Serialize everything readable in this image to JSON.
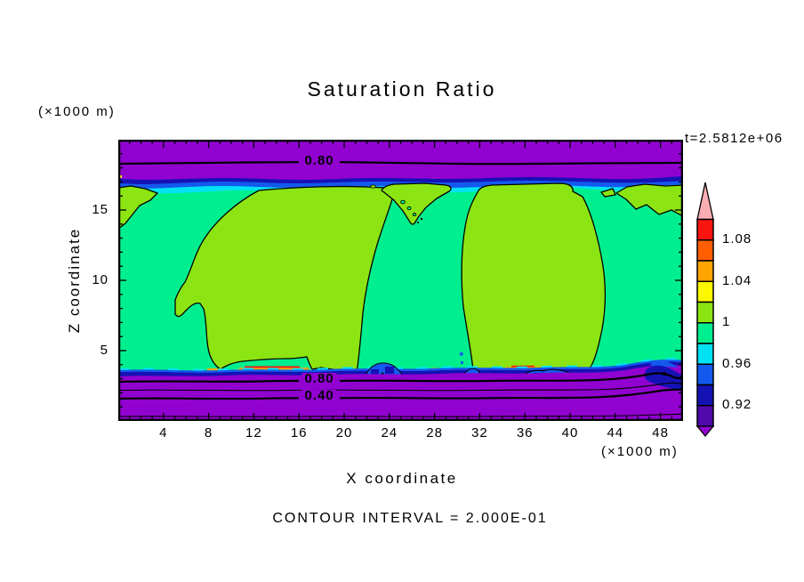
{
  "title": "Saturation Ratio",
  "time_label": "t=2.5812e+06",
  "y_unit_label": "(×1000 m)",
  "x_unit_label": "(×1000 m)",
  "footer_note": "CONTOUR INTERVAL = 2.000E-01",
  "palette": {
    "purple": "#9102D1",
    "indigo": "#5109AC",
    "navy": "#1512B4",
    "blue": "#1459EE",
    "cyan": "#00E2F4",
    "spring": "#00EF8E",
    "chartreuse": "#8CE512",
    "yellow": "#FDF800",
    "orange": "#FFA400",
    "orangeRed": "#FF5E00",
    "red": "#FA1410",
    "pink": "#FCAEB4"
  },
  "chart_data": {
    "type": "heatmap",
    "subtype": "filled-contour-plot",
    "title": "Saturation Ratio",
    "time_annotation": "t=2.5812e+06",
    "xlabel": "X coordinate",
    "ylabel": "Z coordinate",
    "x_unit": "(×1000 m)",
    "y_unit": "(×1000 m)",
    "xlim": [
      0,
      50
    ],
    "ylim": [
      0,
      20
    ],
    "x_ticks_labeled": [
      4,
      8,
      12,
      16,
      20,
      24,
      28,
      32,
      36,
      40,
      44,
      48
    ],
    "x_minor_tick_step": 1,
    "y_ticks_labeled": [
      5,
      10,
      15
    ],
    "y_minor_tick_step": 1,
    "grid": false,
    "contour_interval": 0.2,
    "contour_interval_text": "CONTOUR INTERVAL = 2.000E-01",
    "line_contour_labels": [
      {
        "text": "0.80",
        "x": 17.8,
        "y": 18.45
      },
      {
        "text": "0.80",
        "x": 17.8,
        "y": 2.95
      },
      {
        "text": "0.40",
        "x": 17.8,
        "y": 1.78
      }
    ],
    "colorbar": {
      "position": "right",
      "labels": [
        {
          "text": "1.08",
          "boundary_after_cell": 1
        },
        {
          "text": "1.04",
          "boundary_after_cell": 3
        },
        {
          "text": "1",
          "boundary_after_cell": 5
        },
        {
          "text": "0.96",
          "boundary_after_cell": 7
        },
        {
          "text": "0.92",
          "boundary_after_cell": 9
        }
      ],
      "cells_top_to_bottom": [
        {
          "range": "1.08 to 1.10",
          "color_name": "red"
        },
        {
          "range": "1.06 to 1.08",
          "color_name": "orangeRed"
        },
        {
          "range": "1.04 to 1.06",
          "color_name": "orange"
        },
        {
          "range": "1.02 to 1.04",
          "color_name": "yellow"
        },
        {
          "range": "1.00 to 1.02",
          "color_name": "chartreuse"
        },
        {
          "range": "0.98 to 1.00",
          "color_name": "spring"
        },
        {
          "range": "0.96 to 0.98",
          "color_name": "cyan"
        },
        {
          "range": "0.94 to 0.96",
          "color_name": "blue"
        },
        {
          "range": "0.92 to 0.94",
          "color_name": "navy"
        },
        {
          "range": "0.90 to 0.92",
          "color_name": "indigo"
        }
      ],
      "above_range": {
        "range": "> 1.10",
        "color_name": "pink"
      },
      "below_range": {
        "range": "< 0.90",
        "color_name": "purple"
      }
    },
    "field_regions": [
      {
        "where": "top band z≈18.7–20",
        "value": "saturation ratio < 0.9 (purple), labeled 0.80 contour at z≈18.4"
      },
      {
        "where": "thin bands z≈16.3–18.7",
        "value": "0.90–0.98 (indigo/navy/blue/cyan transition)"
      },
      {
        "where": "main interior z≈3.5–16.5",
        "value": "0.98–1.00 background (spring green) with large 1.00–1.02 lobes (chartreuse) centered near x≈12 and x≈30, plus patches at x≈0–4, x≈23–27 and x≈44–50 near z≈16"
      },
      {
        "where": "boundary-layer top z≈3.2–3.6",
        "value": "local supersaturation streaks up to >1.08 (yellow/orange/red) and moist spots 0.94–0.96 (blue)"
      },
      {
        "where": "bottom band z≈0–3.2",
        "value": "< 0.9 (purple) with line contours 0.80, 0.60, 0.40, 0.20"
      }
    ]
  }
}
